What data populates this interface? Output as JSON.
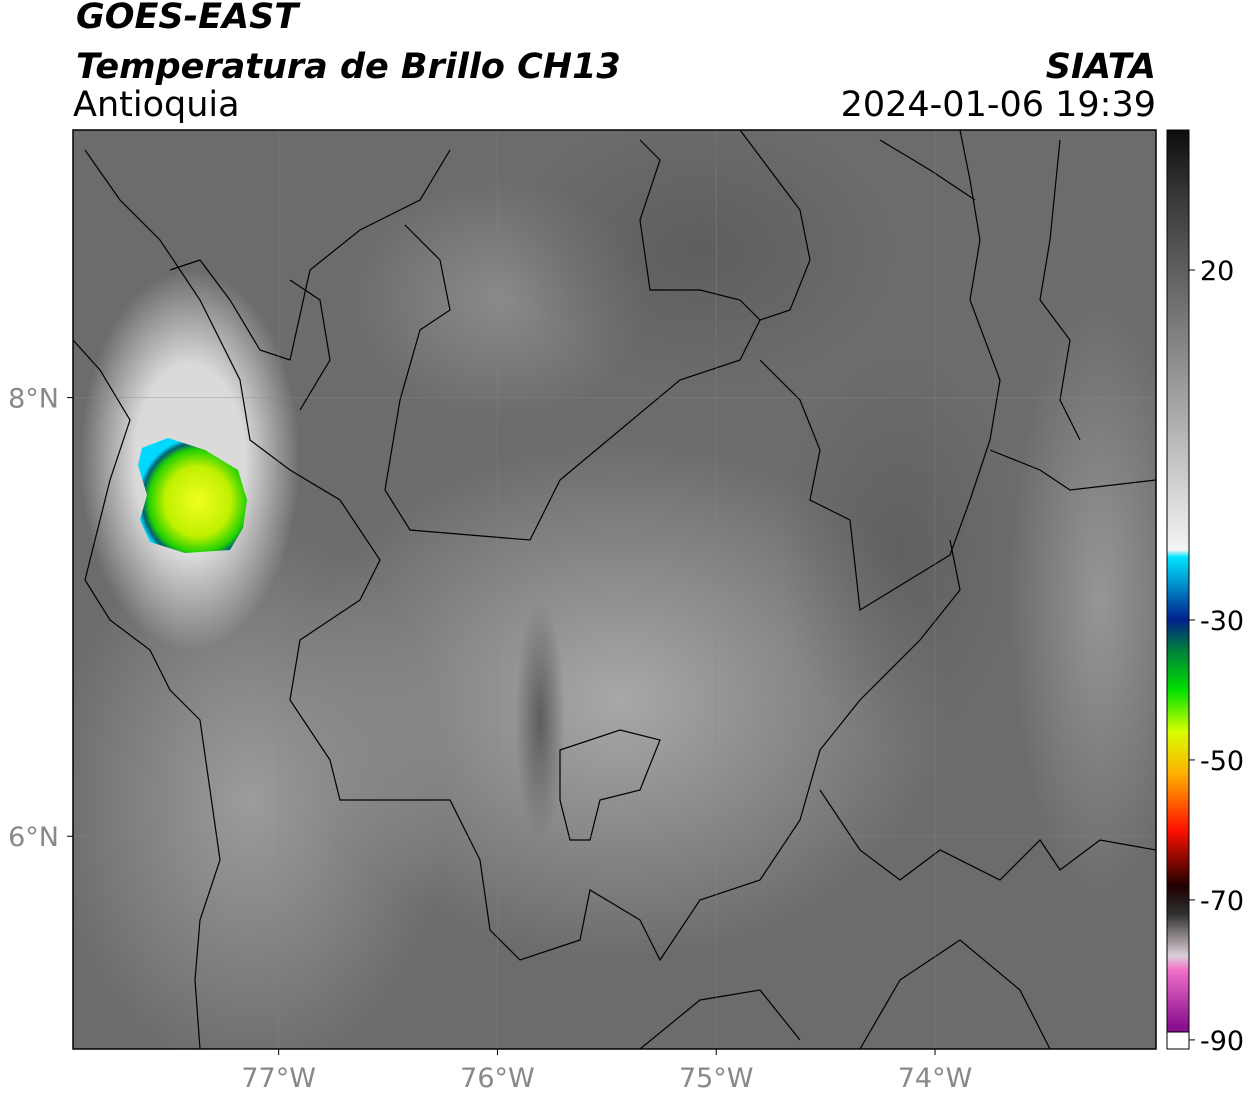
{
  "header": {
    "title": "GOES-EAST",
    "subtitle": "Temperatura de Brillo CH13",
    "region": "Antioquia",
    "source": "SIATA",
    "datetime": "2024-01-06 19:39"
  },
  "map": {
    "xlim": [
      -77.94,
      -72.99
    ],
    "ylim": [
      5.03,
      9.22
    ],
    "xticks": [
      {
        "value": -77,
        "label": "77°W"
      },
      {
        "value": -76,
        "label": "76°W"
      },
      {
        "value": -75,
        "label": "75°W"
      },
      {
        "value": -74,
        "label": "74°W"
      }
    ],
    "yticks": [
      {
        "value": 8,
        "label": "8°N"
      },
      {
        "value": 6,
        "label": "6°N"
      }
    ],
    "grid": true
  },
  "colorbar": {
    "lim": [
      -91.3,
      40
    ],
    "ticks": [
      20,
      -30,
      -50,
      -70,
      -90
    ],
    "colormap": [
      {
        "value": 40,
        "color": "#0d0d0d"
      },
      {
        "value": 30,
        "color": "#3a3a3a"
      },
      {
        "value": 20,
        "color": "#5e5e5e"
      },
      {
        "value": 0,
        "color": "#a8a8a8"
      },
      {
        "value": -20,
        "color": "#f4f4f4"
      },
      {
        "value": -21,
        "color": "#00e5ff"
      },
      {
        "value": -30,
        "color": "#00208a"
      },
      {
        "value": -34,
        "color": "#007a40"
      },
      {
        "value": -40,
        "color": "#00e000"
      },
      {
        "value": -46,
        "color": "#d8ff00"
      },
      {
        "value": -52,
        "color": "#ffb000"
      },
      {
        "value": -60,
        "color": "#ff1000"
      },
      {
        "value": -68,
        "color": "#200000"
      },
      {
        "value": -72,
        "color": "#303030"
      },
      {
        "value": -78,
        "color": "#dcd0d8"
      },
      {
        "value": -80,
        "color": "#f070c8"
      },
      {
        "value": -88,
        "color": "#8a1090"
      }
    ]
  }
}
